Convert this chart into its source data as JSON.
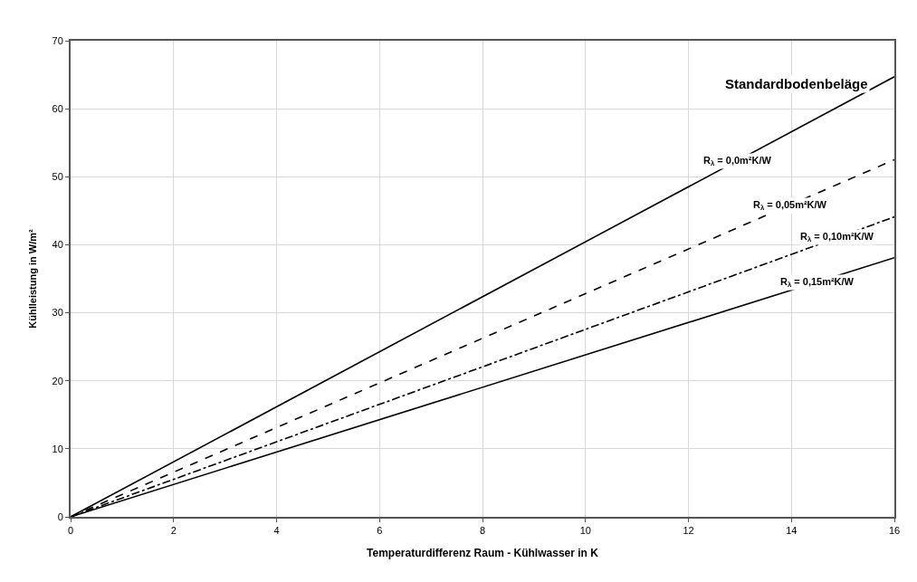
{
  "chart_data": {
    "type": "line",
    "xlabel": "Temperaturdifferenz Raum - Kühlwasser in K",
    "ylabel": "Kühlleistung in W/m²",
    "annotations": [
      "Standardbodenbeläge"
    ],
    "xlim": [
      0,
      16
    ],
    "xticks": [
      0,
      2,
      4,
      6,
      8,
      10,
      12,
      14,
      16
    ],
    "ylim": [
      0,
      70
    ],
    "yticks": [
      0,
      10,
      20,
      30,
      40,
      50,
      60,
      70
    ],
    "grid": true,
    "legend": false,
    "marker": "none",
    "x": [
      0,
      16
    ],
    "series": [
      {
        "name": "R$_{λ}$ = 0,0m²K/W",
        "color": "#000000",
        "line_style": "solid",
        "values": [
          0,
          64.7
        ]
      },
      {
        "name": "R$_{λ}$ = 0,05m²K/W",
        "color": "#000000",
        "line_style": "dashed",
        "values": [
          0,
          52.5
        ]
      },
      {
        "name": "R$_{λ}$ = 0,10m²K/W",
        "color": "#000000",
        "line_style": "dashdot",
        "values": [
          0,
          44.1
        ]
      },
      {
        "name": "R$_{λ}$ = 0,15m²K/W",
        "color": "#000000",
        "line_style": "solid",
        "values": [
          0,
          38.1
        ]
      }
    ]
  }
}
